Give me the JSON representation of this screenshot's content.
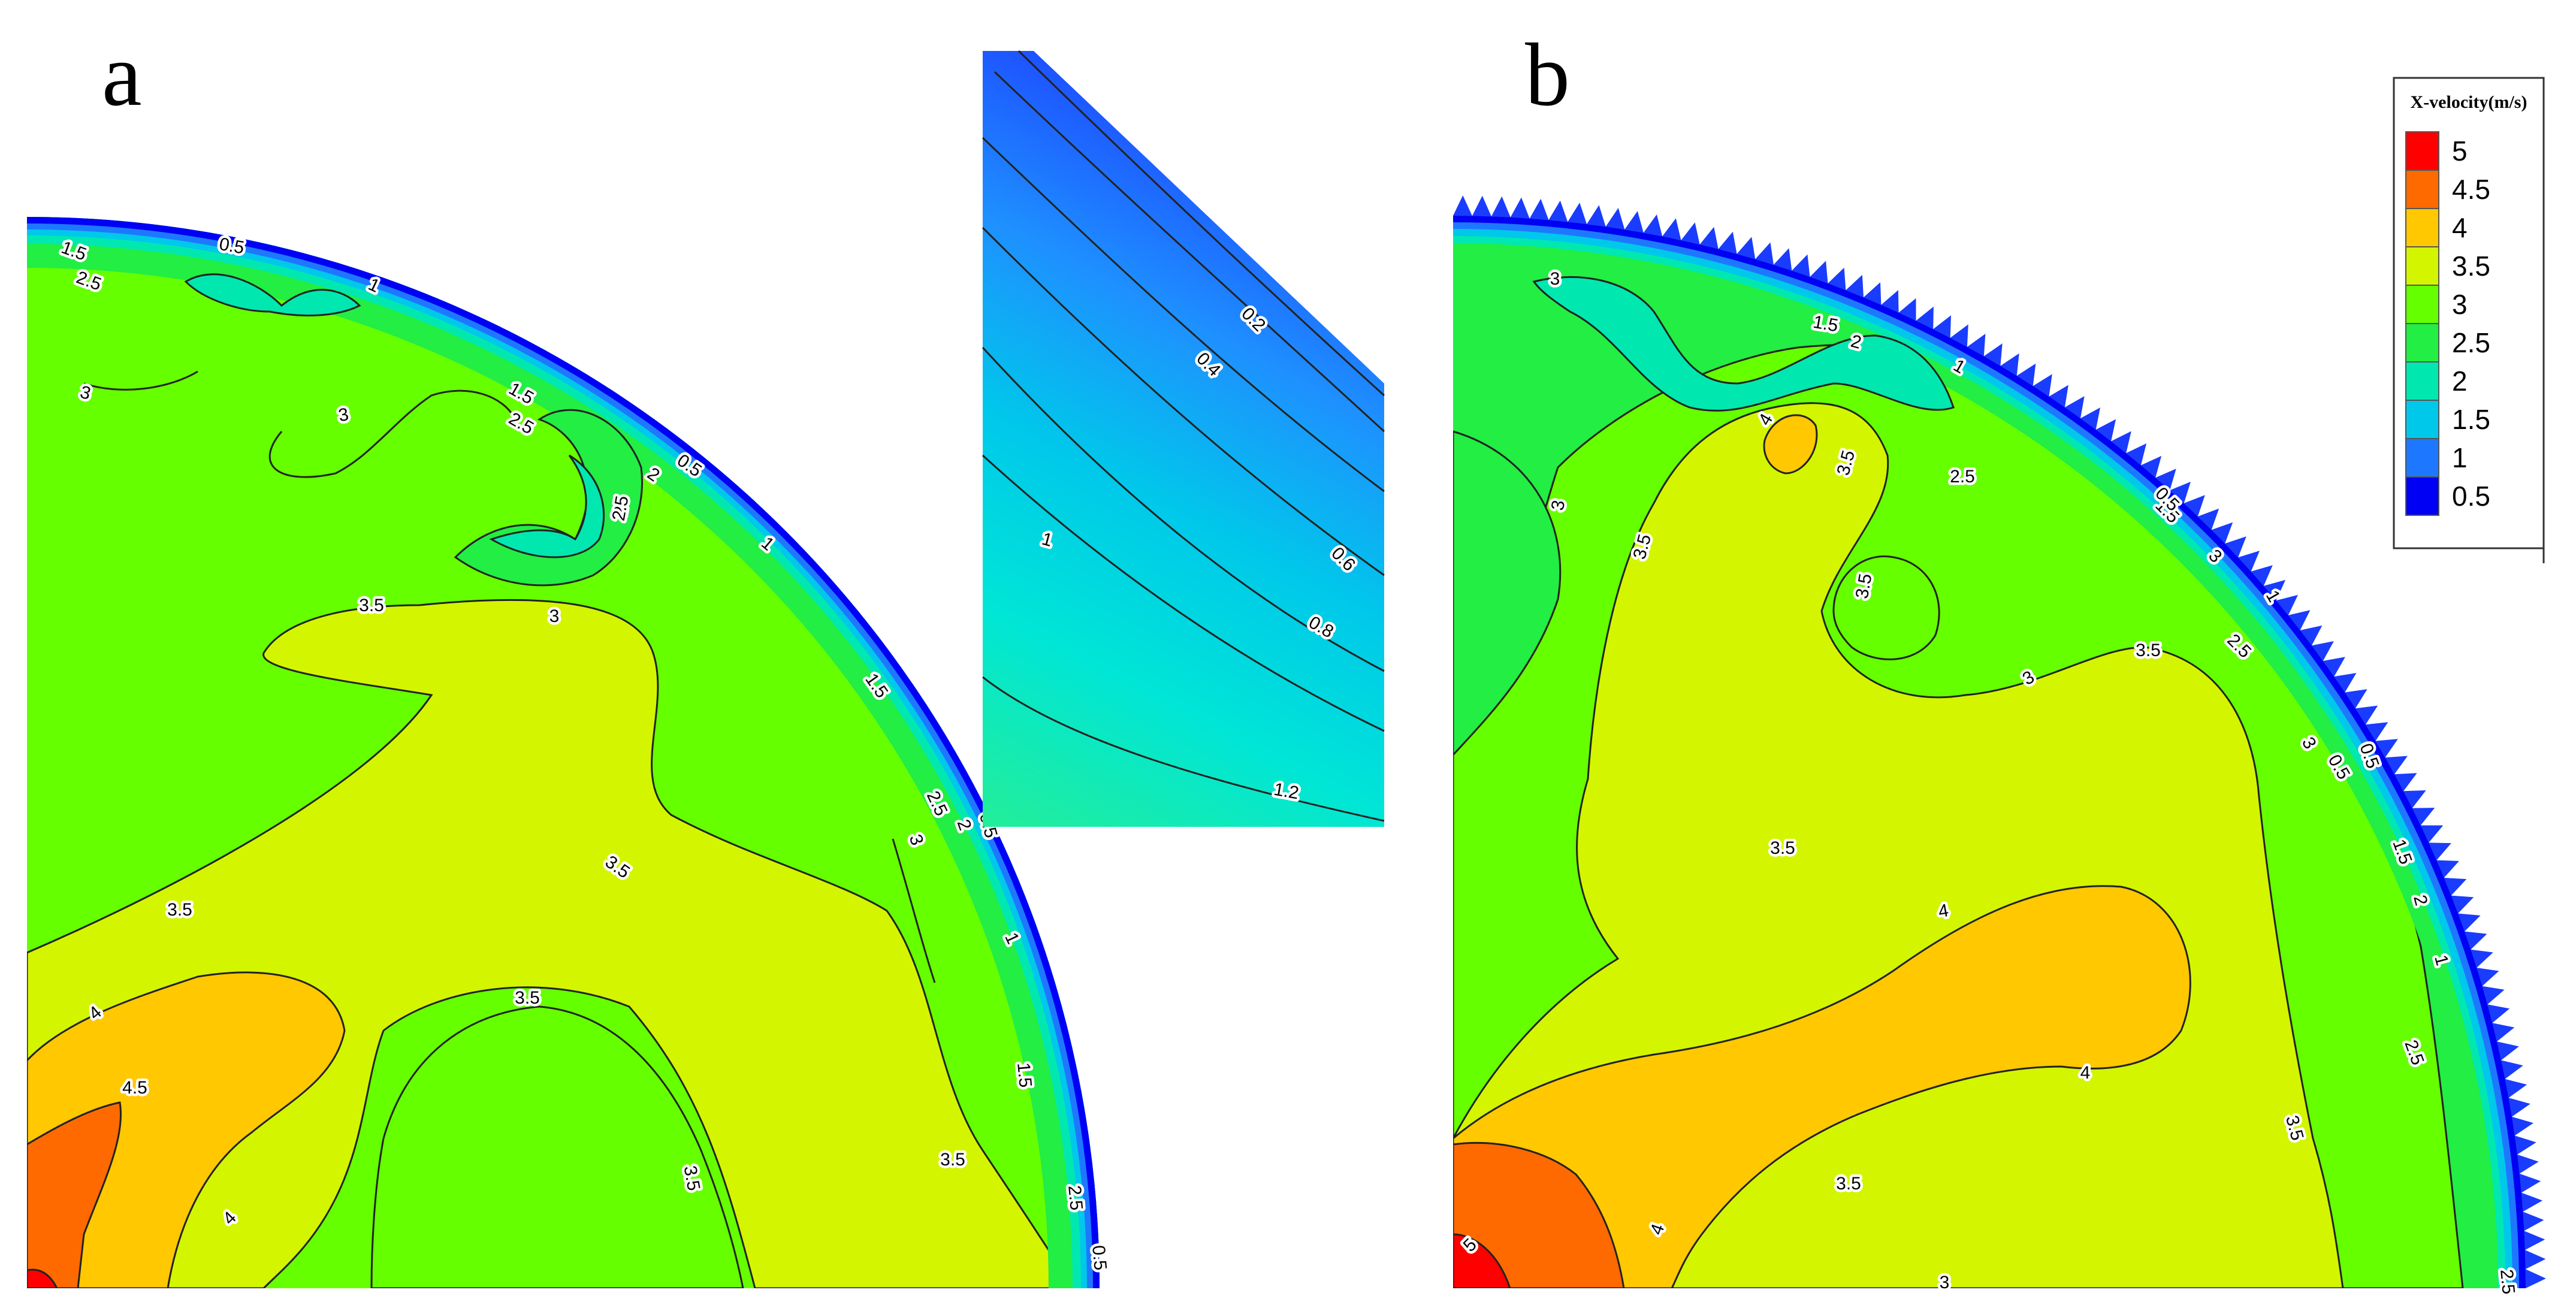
{
  "panels": [
    {
      "letter": "a"
    },
    {
      "letter": "b"
    }
  ],
  "chart_data": {
    "type": "heatmap",
    "title": "",
    "legend": {
      "title": "X-velocity(m/s)",
      "placement": "top-right",
      "levels": [
        5,
        4.5,
        4,
        3.5,
        3,
        2.5,
        2,
        1.5,
        1,
        0.5
      ],
      "colors": [
        "#ff0000",
        "#ff6a00",
        "#ffc800",
        "#d4f500",
        "#66ff00",
        "#22ee44",
        "#00e8b0",
        "#00c8ea",
        "#1e78ff",
        "#0000f5"
      ]
    },
    "panel_a_contour_labels": [
      "0.5",
      "1.5",
      "2.5",
      "1",
      "3",
      "3",
      "2",
      "1.5",
      "2.5",
      "0.5",
      "2",
      "2.5",
      "1",
      "3",
      "3.5",
      "1.5",
      "2.5",
      "2",
      "0.5",
      "3",
      "3.5",
      "3.5",
      "1",
      "3.5",
      "4",
      "4.5",
      "1.5",
      "3.5",
      "3.5",
      "4",
      "2.5",
      "0.5"
    ],
    "inset_contour_labels": [
      "0.2",
      "0.4",
      "1",
      "0.6",
      "0.8",
      "1.2"
    ],
    "panel_b_contour_labels": [
      "3",
      "1.5",
      "2",
      "1",
      "4",
      "3.5",
      "3",
      "2.5",
      "1.5",
      "0.5",
      "3.5",
      "3",
      "1",
      "0.5",
      "3.5",
      "3",
      "2.5",
      "3.5",
      "3",
      "0.5",
      "3.5",
      "1.5",
      "4",
      "2",
      "1",
      "4",
      "2.5",
      "3.5",
      "3.5",
      "4",
      "5",
      "3",
      "2.5"
    ]
  }
}
